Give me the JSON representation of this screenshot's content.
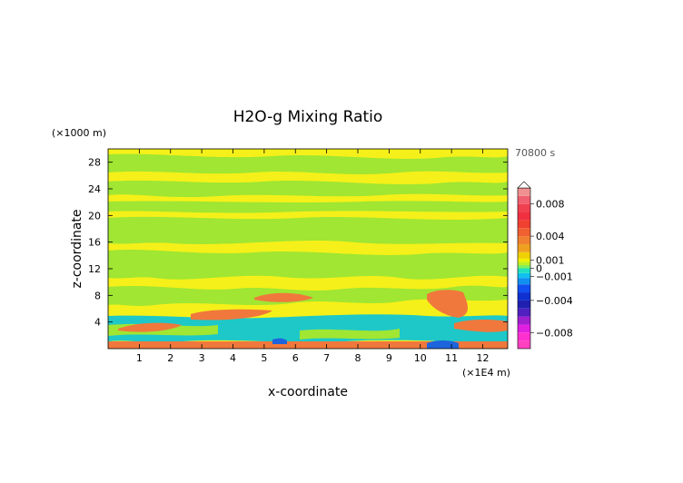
{
  "chart_data": {
    "type": "heatmap",
    "title": "H2O-g Mixing Ratio",
    "xlabel": "x-coordinate",
    "ylabel": "z-coordinate",
    "x_unit": "(×1E4 m)",
    "y_unit": "(×1000 m)",
    "time_label": "70800 s",
    "xlim": [
      0,
      12.8
    ],
    "ylim": [
      0,
      30
    ],
    "x_ticks": [
      1,
      2,
      3,
      4,
      5,
      6,
      7,
      8,
      9,
      10,
      11,
      12
    ],
    "x_tick_labels": [
      "1",
      "2",
      "3",
      "4",
      "5",
      "6",
      "7",
      "8",
      "9",
      "10",
      "11",
      "12"
    ],
    "y_ticks": [
      4,
      8,
      12,
      16,
      20,
      24,
      28
    ],
    "y_tick_labels": [
      "4",
      "8",
      "12",
      "16",
      "20",
      "24",
      "28"
    ],
    "colorbar": {
      "range": [
        -0.01,
        0.01
      ],
      "tick_values": [
        0.008,
        0.004,
        0.001,
        0,
        -0.001,
        -0.004,
        -0.008
      ],
      "tick_labels": [
        "0.008",
        "0.004",
        "0.001",
        "0",
        "−0.001",
        "−0.004",
        "−0.008"
      ]
    },
    "bands": [
      {
        "z_min": 0,
        "z_max": 1,
        "approx_value": 0.0025,
        "color": "#f08a3c"
      },
      {
        "z_min": 1,
        "z_max": 5,
        "approx_value": -0.0012,
        "color": "#1ec8c8"
      },
      {
        "z_min": 2,
        "z_max": 4,
        "approx_value": 0.003,
        "color": "#f0783c"
      },
      {
        "z_min": 5,
        "z_max": 9,
        "approx_value": 0.0006,
        "color": "#f5f019"
      },
      {
        "z_min": 9,
        "z_max": 29,
        "approx_value": 0.0003,
        "color": "#a0e632"
      }
    ]
  },
  "colors": {
    "yellow": "#f5f019",
    "green": "#a0e632",
    "orange": "#f08a3c",
    "cyan": "#1ec8c8",
    "blue": "#1e64dc"
  }
}
